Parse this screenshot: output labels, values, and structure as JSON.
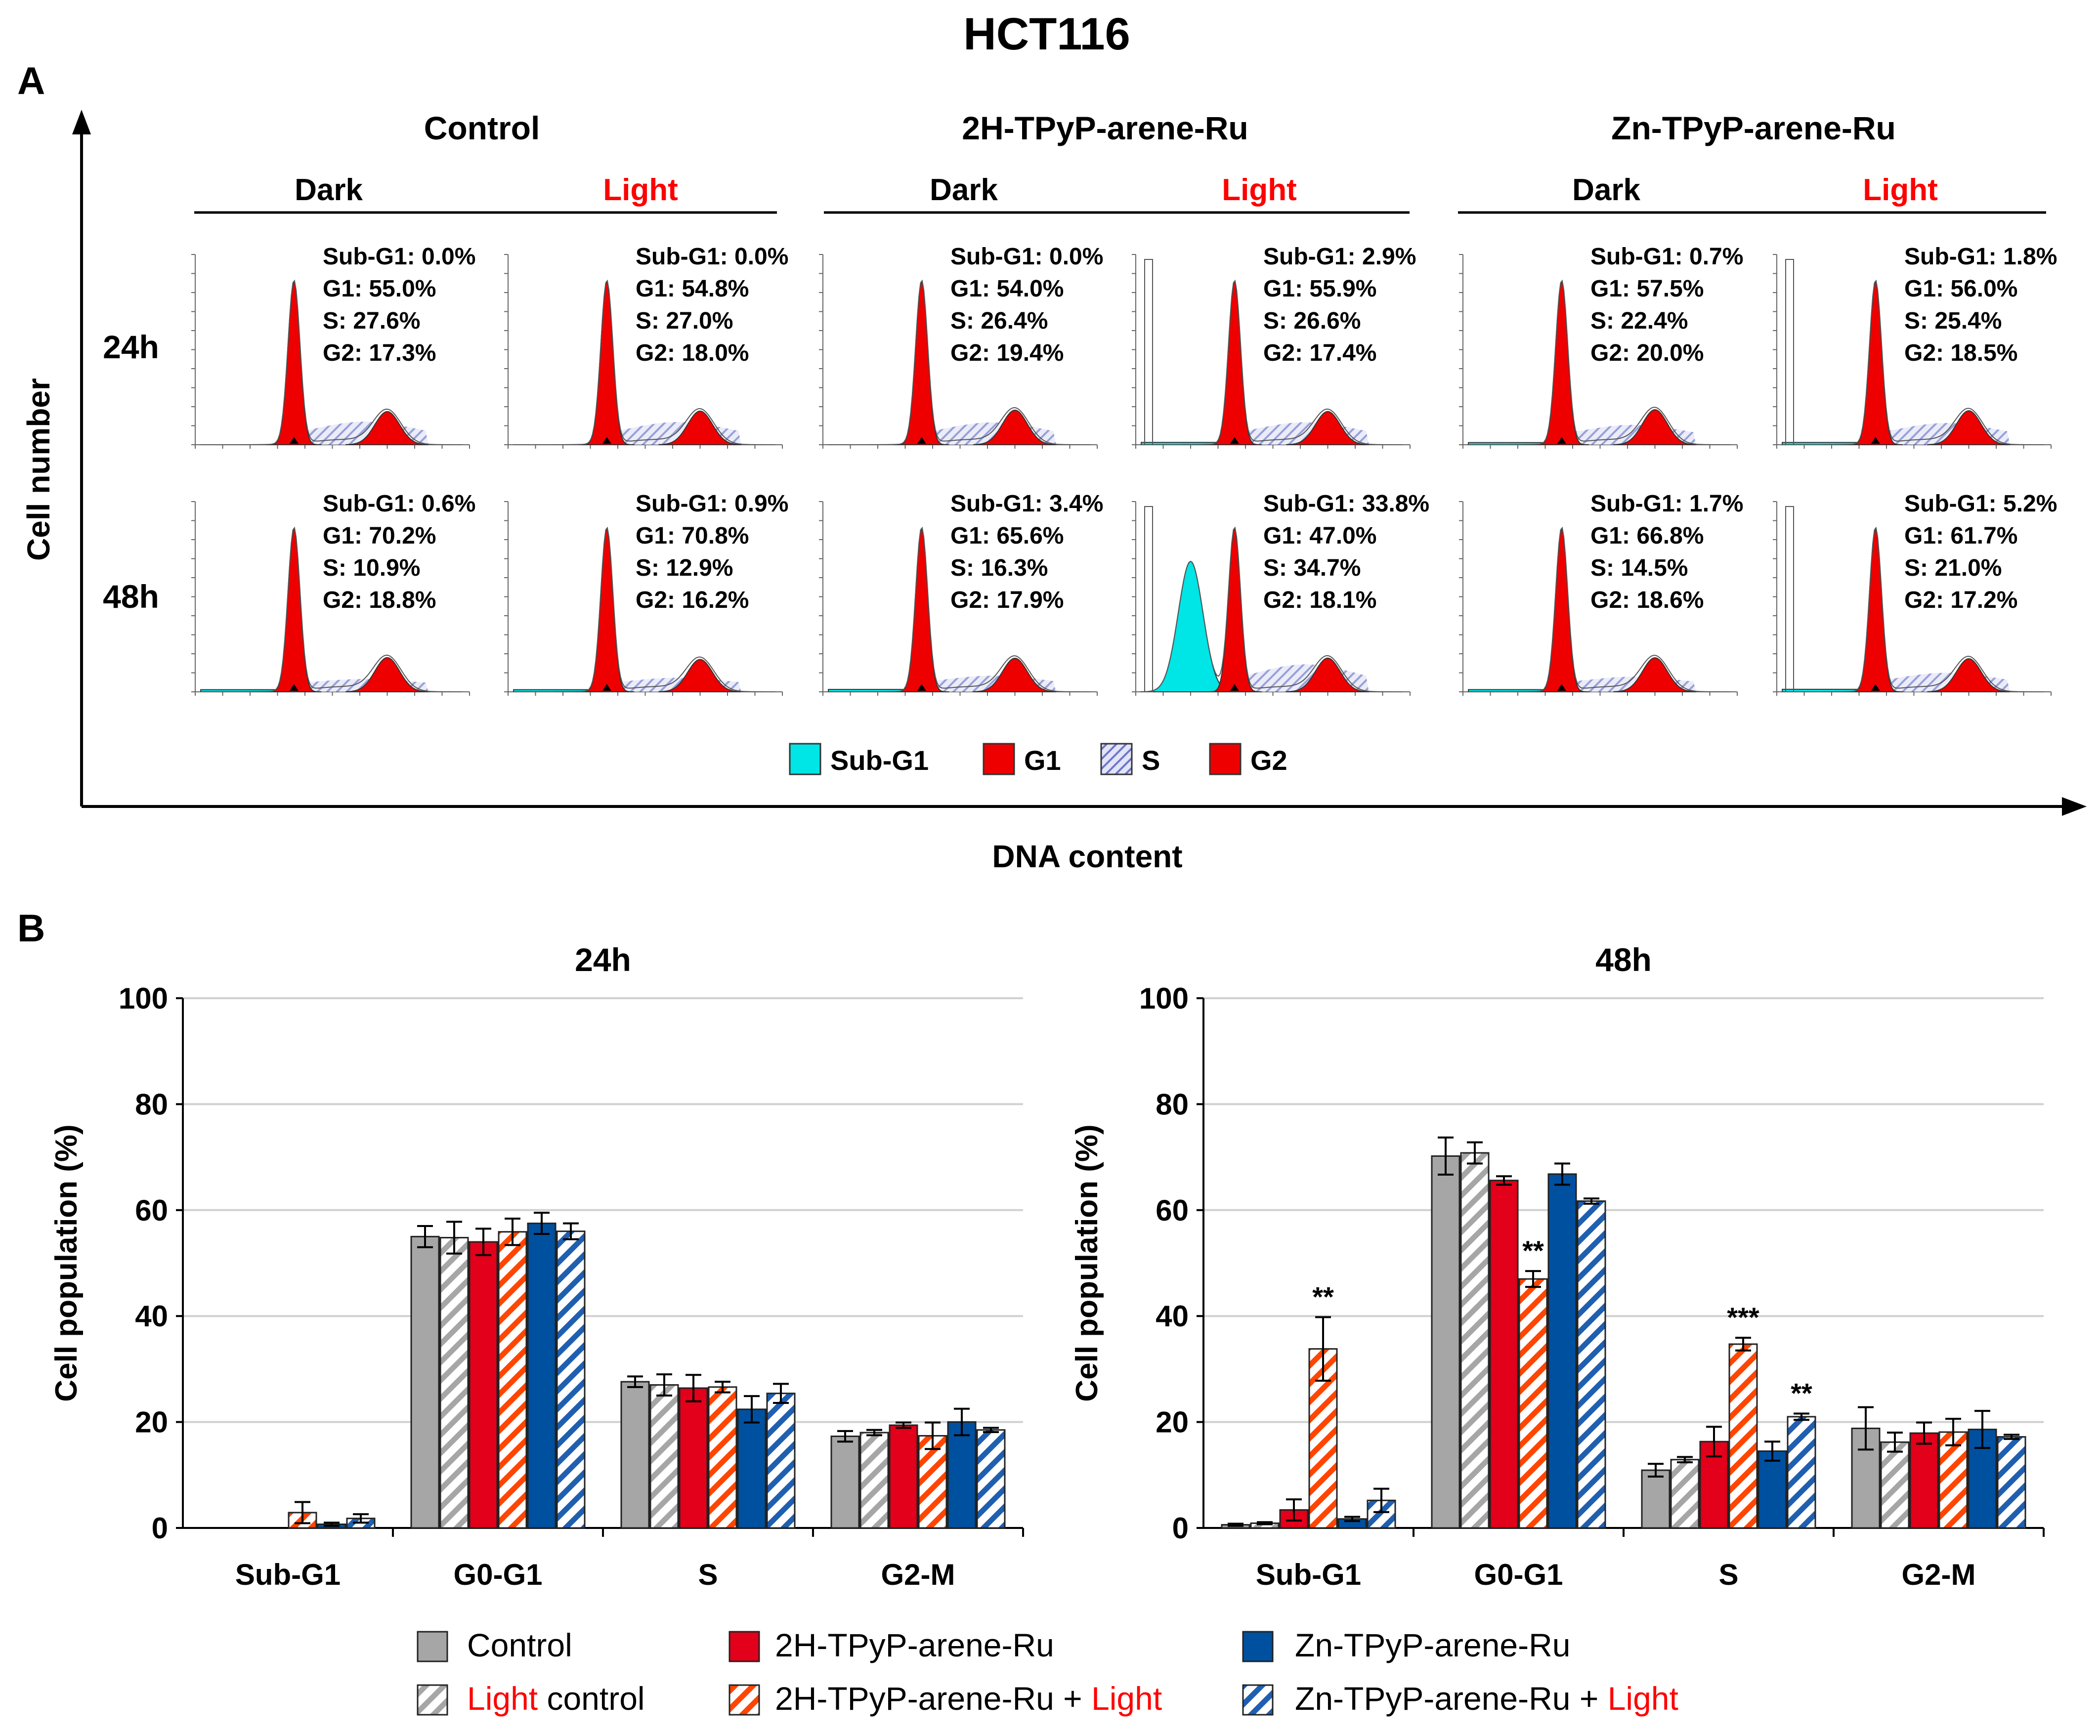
{
  "figure": {
    "title": "HCT116",
    "panel_a_label": "A",
    "panel_b_label": "B",
    "y_axis_label": "Cell number",
    "x_axis_label": "DNA content",
    "groups": [
      {
        "name": "Control",
        "dark": "Dark",
        "light": "Light"
      },
      {
        "name": "2H-TPyP-arene-Ru",
        "dark": "Dark",
        "light": "Light"
      },
      {
        "name": "Zn-TPyP-arene-Ru",
        "dark": "Dark",
        "light": "Light"
      }
    ],
    "row_labels": [
      "24h",
      "48h"
    ],
    "phase_legend": [
      "Sub-G1",
      "G1",
      "S",
      "G2"
    ],
    "colors": {
      "subg1": "#00e5e5",
      "g1": "#ee0000",
      "s_fill": "#c8c8ec",
      "g2": "#ee0000",
      "light_text": "#ff0000"
    }
  },
  "histograms": [
    {
      "row": "24h",
      "panel": "Control Dark",
      "subg1": "Sub-G1: 0.0%",
      "g1": "G1: 55.0%",
      "s": "S:  27.6%",
      "g2": "G2: 17.3%",
      "v": [
        0.0,
        55.0,
        27.6,
        17.3
      ]
    },
    {
      "row": "24h",
      "panel": "Control Light",
      "subg1": "Sub-G1: 0.0%",
      "g1": "G1: 54.8%",
      "s": "S: 27.0%",
      "g2": "G2: 18.0%",
      "v": [
        0.0,
        54.8,
        27.0,
        18.0
      ]
    },
    {
      "row": "24h",
      "panel": "2H Dark",
      "subg1": "Sub-G1: 0.0%",
      "g1": "G1: 54.0%",
      "s": "S: 26.4%",
      "g2": "G2: 19.4%",
      "v": [
        0.0,
        54.0,
        26.4,
        19.4
      ]
    },
    {
      "row": "24h",
      "panel": "2H Light",
      "subg1": "Sub-G1: 2.9%",
      "g1": "G1: 55.9%",
      "s": "S: 26.6%",
      "g2": "G2: 17.4%",
      "v": [
        2.9,
        55.9,
        26.6,
        17.4
      ]
    },
    {
      "row": "24h",
      "panel": "Zn Dark",
      "subg1": "Sub-G1: 0.7%",
      "g1": "G1: 57.5%",
      "s": "S: 22.4%",
      "g2": "G2: 20.0%",
      "v": [
        0.7,
        57.5,
        22.4,
        20.0
      ]
    },
    {
      "row": "24h",
      "panel": "Zn Light",
      "subg1": "Sub-G1: 1.8%",
      "g1": "G1: 56.0%",
      "s": "S: 25.4%",
      "g2": "G2: 18.5%",
      "v": [
        1.8,
        56.0,
        25.4,
        18.5
      ]
    },
    {
      "row": "48h",
      "panel": "Control Dark",
      "subg1": "Sub-G1: 0.6%",
      "g1": "G1: 70.2%",
      "s": "S: 10.9%",
      "g2": "G2: 18.8%",
      "v": [
        0.6,
        70.2,
        10.9,
        18.8
      ]
    },
    {
      "row": "48h",
      "panel": "Control Light",
      "subg1": "Sub-G1: 0.9%",
      "g1": "G1: 70.8%",
      "s": "S: 12.9%",
      "g2": "G2: 16.2%",
      "v": [
        0.9,
        70.8,
        12.9,
        16.2
      ]
    },
    {
      "row": "48h",
      "panel": "2H Dark",
      "subg1": "Sub-G1: 3.4%",
      "g1": "G1: 65.6%",
      "s": "S: 16.3%",
      "g2": "G2: 17.9%",
      "v": [
        3.4,
        65.6,
        16.3,
        17.9
      ]
    },
    {
      "row": "48h",
      "panel": "2H Light",
      "subg1": "Sub-G1: 33.8%",
      "g1": "G1: 47.0%",
      "s": "S: 34.7%",
      "g2": "G2: 18.1%",
      "v": [
        33.8,
        47.0,
        34.7,
        18.1
      ]
    },
    {
      "row": "48h",
      "panel": "Zn Dark",
      "subg1": "Sub-G1: 1.7%",
      "g1": "G1: 66.8%",
      "s": "S: 14.5%",
      "g2": "G2: 18.6%",
      "v": [
        1.7,
        66.8,
        14.5,
        18.6
      ]
    },
    {
      "row": "48h",
      "panel": "Zn Light",
      "subg1": "Sub-G1: 5.2%",
      "g1": "G1: 61.7%",
      "s": "S: 21.0%",
      "g2": "G2: 17.2%",
      "v": [
        5.2,
        61.7,
        21.0,
        17.2
      ]
    }
  ],
  "legend_b": [
    {
      "text": "Control",
      "suffix": ""
    },
    {
      "text": "2H-TPyP-arene-Ru",
      "suffix": ""
    },
    {
      "text": "Zn-TPyP-arene-Ru",
      "suffix": ""
    },
    {
      "text": "Light",
      "suffix": " control",
      "red_first": true
    },
    {
      "text": "2H-TPyP-arene-Ru + ",
      "suffix": "Light"
    },
    {
      "text": "Zn-TPyP-arene-Ru + ",
      "suffix": "Light"
    }
  ],
  "chart_data": [
    {
      "type": "bar",
      "title": "24h",
      "ylabel": "Cell population (%)",
      "xlabel": "",
      "ylim": [
        0,
        100
      ],
      "yticks": [
        0,
        20,
        40,
        60,
        80,
        100
      ],
      "categories": [
        "Sub-G1",
        "G0-G1",
        "S",
        "G2-M"
      ],
      "series": [
        {
          "name": "Control",
          "color": "#a6a6a6",
          "hatched": false,
          "values": [
            0.0,
            55.0,
            27.6,
            17.3
          ],
          "errors": [
            0.0,
            2.0,
            1.0,
            1.0
          ]
        },
        {
          "name": "Light control",
          "color": "#a6a6a6",
          "hatched": true,
          "values": [
            0.0,
            54.8,
            27.0,
            18.0
          ],
          "errors": [
            0.0,
            3.0,
            2.0,
            0.5
          ]
        },
        {
          "name": "2H-TPyP-arene-Ru",
          "color": "#e2001a",
          "hatched": false,
          "values": [
            0.0,
            54.0,
            26.4,
            19.4
          ],
          "errors": [
            0.0,
            2.5,
            2.5,
            0.5
          ]
        },
        {
          "name": "2H-TPyP-arene-Ru + Light",
          "color": "#ff4500",
          "hatched": true,
          "values": [
            2.9,
            55.9,
            26.6,
            17.4
          ],
          "errors": [
            2.0,
            2.5,
            1.0,
            2.5
          ]
        },
        {
          "name": "Zn-TPyP-arene-Ru",
          "color": "#0050a0",
          "hatched": false,
          "values": [
            0.7,
            57.5,
            22.4,
            20.0
          ],
          "errors": [
            0.3,
            2.0,
            2.5,
            2.5
          ]
        },
        {
          "name": "Zn-TPyP-arene-Ru + Light",
          "color": "#1f5fb0",
          "hatched": true,
          "values": [
            1.8,
            56.0,
            25.4,
            18.5
          ],
          "errors": [
            0.8,
            1.5,
            1.8,
            0.4
          ]
        }
      ],
      "significance": []
    },
    {
      "type": "bar",
      "title": "48h",
      "ylabel": "Cell population (%)",
      "xlabel": "",
      "ylim": [
        0,
        100
      ],
      "yticks": [
        0,
        20,
        40,
        60,
        80,
        100
      ],
      "categories": [
        "Sub-G1",
        "G0-G1",
        "S",
        "G2-M"
      ],
      "series": [
        {
          "name": "Control",
          "color": "#a6a6a6",
          "hatched": false,
          "values": [
            0.6,
            70.2,
            10.9,
            18.8
          ],
          "errors": [
            0.2,
            3.5,
            1.2,
            4.0
          ]
        },
        {
          "name": "Light control",
          "color": "#a6a6a6",
          "hatched": true,
          "values": [
            0.9,
            70.8,
            12.9,
            16.2
          ],
          "errors": [
            0.2,
            2.0,
            0.5,
            1.8
          ]
        },
        {
          "name": "2H-TPyP-arene-Ru",
          "color": "#e2001a",
          "hatched": false,
          "values": [
            3.4,
            65.6,
            16.3,
            17.9
          ],
          "errors": [
            2.0,
            0.8,
            2.8,
            2.0
          ]
        },
        {
          "name": "2H-TPyP-arene-Ru + Light",
          "color": "#ff4500",
          "hatched": true,
          "values": [
            33.8,
            47.0,
            34.7,
            18.1
          ],
          "errors": [
            6.0,
            1.5,
            1.2,
            2.5
          ]
        },
        {
          "name": "Zn-TPyP-arene-Ru",
          "color": "#0050a0",
          "hatched": false,
          "values": [
            1.7,
            66.8,
            14.5,
            18.6
          ],
          "errors": [
            0.4,
            2.0,
            1.8,
            3.5
          ]
        },
        {
          "name": "Zn-TPyP-arene-Ru + Light",
          "color": "#1f5fb0",
          "hatched": true,
          "values": [
            5.2,
            61.7,
            21.0,
            17.2
          ],
          "errors": [
            2.2,
            0.5,
            0.6,
            0.4
          ]
        }
      ],
      "significance": [
        {
          "category": 0,
          "series": 3,
          "label": "**"
        },
        {
          "category": 1,
          "series": 3,
          "label": "**"
        },
        {
          "category": 2,
          "series": 3,
          "label": "***"
        },
        {
          "category": 2,
          "series": 5,
          "label": "**"
        }
      ]
    }
  ]
}
